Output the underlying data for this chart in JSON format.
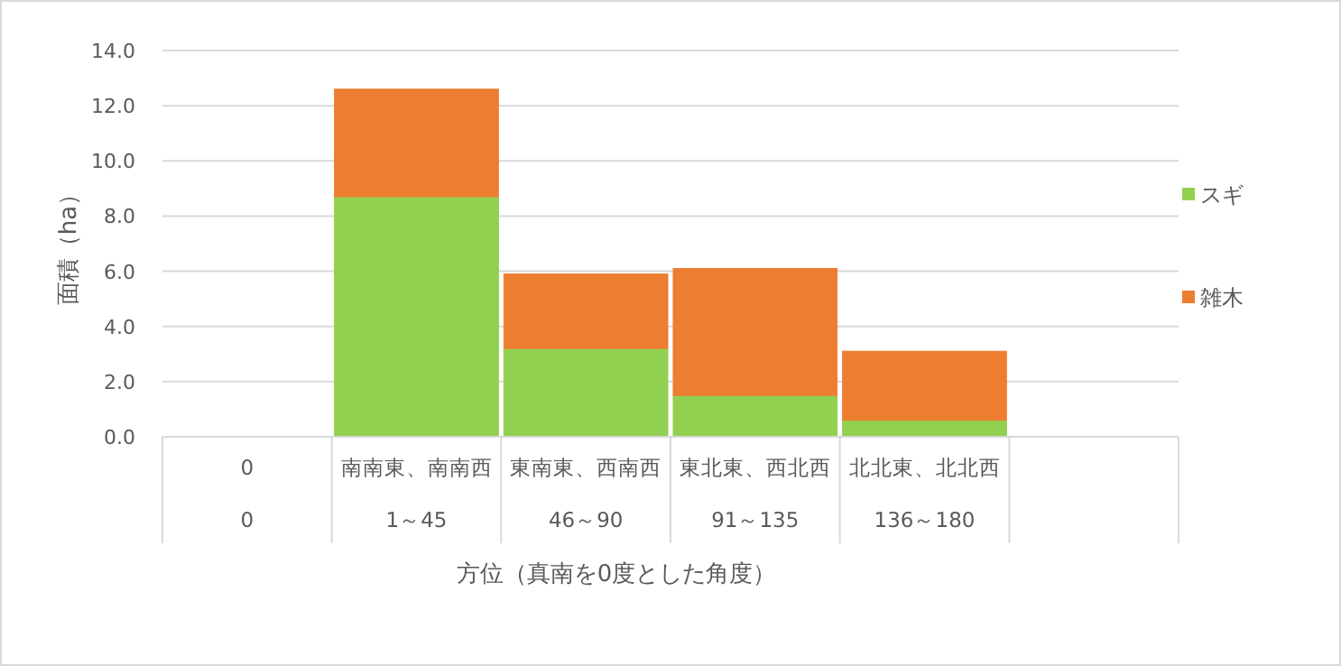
{
  "chart_data": {
    "type": "bar",
    "stacked": true,
    "xlabel": "方位（真南を0度とした角度）",
    "ylabel": "面積（ha）",
    "categories": [
      "0\n0",
      "南南東、南南西\n1～45",
      "東南東、西南西\n46～90",
      "東北東、西北西\n91～135",
      "北北東、北北西\n136～180",
      null
    ],
    "series": [
      {
        "name": "スギ",
        "color": "#92d050",
        "values": [
          0,
          8.7,
          3.2,
          1.5,
          0.6,
          null
        ]
      },
      {
        "name": "雑木",
        "color": "#ed7d31",
        "values": [
          0,
          3.9,
          2.7,
          4.6,
          2.5,
          null
        ]
      }
    ],
    "ylim": [
      0,
      14
    ],
    "yticks": [
      {
        "value": 0,
        "label": "0.0"
      },
      {
        "value": 2,
        "label": "2.0"
      },
      {
        "value": 4,
        "label": "4.0"
      },
      {
        "value": 6,
        "label": "6.0"
      },
      {
        "value": 8,
        "label": "8.0"
      },
      {
        "value": 10,
        "label": "10.0"
      },
      {
        "value": 12,
        "label": "12.0"
      },
      {
        "value": 14,
        "label": "14.0"
      }
    ],
    "grid": "y",
    "legend": "right"
  }
}
